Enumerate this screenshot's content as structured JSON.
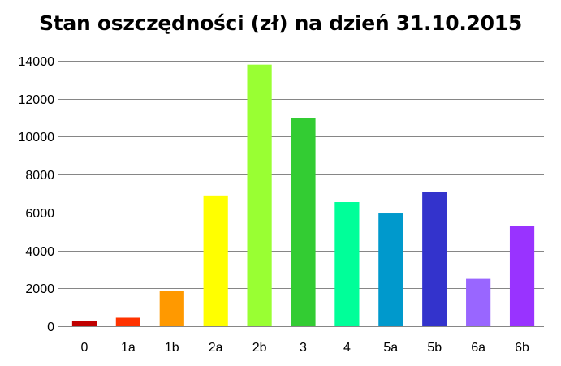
{
  "chart_data": {
    "type": "bar",
    "title": "Stan oszczędności (zł) na dzień 31.10.2015",
    "xlabel": "",
    "ylabel": "",
    "categories": [
      "0",
      "1a",
      "1b",
      "2a",
      "2b",
      "3",
      "4",
      "5a",
      "5b",
      "6a",
      "6b"
    ],
    "values": [
      300,
      450,
      1850,
      6900,
      13800,
      11000,
      6550,
      5950,
      7100,
      2500,
      5300
    ],
    "colors": [
      "#c00000",
      "#ff3300",
      "#ff9900",
      "#ffff00",
      "#99ff33",
      "#33cc33",
      "#00ff99",
      "#0099cc",
      "#3333cc",
      "#9966ff",
      "#9933ff"
    ],
    "ylim": [
      0,
      14000
    ],
    "yticks": [
      "0",
      "2000",
      "4000",
      "6000",
      "8000",
      "10000",
      "12000",
      "14000"
    ],
    "grid": true,
    "legend": "none"
  }
}
